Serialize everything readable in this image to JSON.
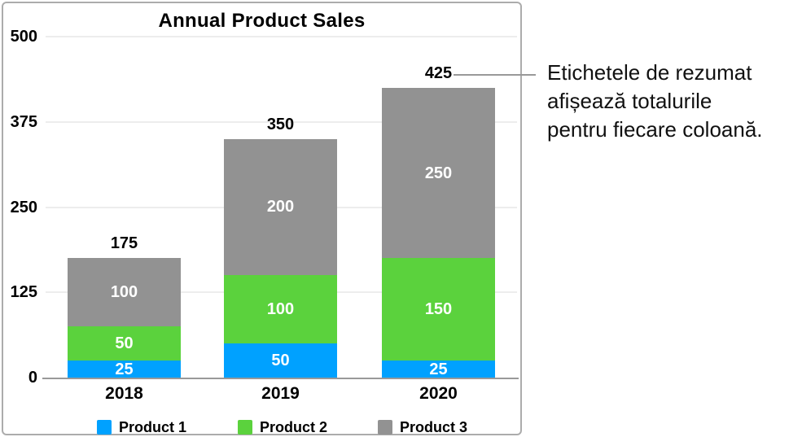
{
  "chart_data": {
    "type": "bar",
    "stacked": true,
    "title": "Annual Product Sales",
    "categories": [
      "2018",
      "2019",
      "2020"
    ],
    "series": [
      {
        "name": "Product 1",
        "color": "#00A1FF",
        "values": [
          25,
          50,
          25
        ]
      },
      {
        "name": "Product 2",
        "color": "#5BD23D",
        "values": [
          50,
          100,
          150
        ]
      },
      {
        "name": "Product 3",
        "color": "#929292",
        "values": [
          100,
          200,
          250
        ]
      }
    ],
    "totals": [
      175,
      350,
      425
    ],
    "segment_labels": [
      [
        "25",
        "50",
        "100"
      ],
      [
        "50",
        "100",
        "200"
      ],
      [
        "25",
        "150",
        "250"
      ]
    ],
    "y_ticks": [
      0,
      125,
      250,
      375,
      500
    ],
    "ylim": [
      0,
      500
    ],
    "grid": true,
    "legend_position": "bottom",
    "colors": {
      "gridline": "#ededed",
      "axis": "#999999",
      "panel_border": "#acacac",
      "total_label": "#000000",
      "segment_label": "#ffffff"
    }
  },
  "annotation": {
    "lines": [
      "Etichetele de rezumat",
      "afișează totalurile",
      "pentru fiecare coloană."
    ],
    "points_to_total": "425",
    "line_color": "#999999"
  }
}
